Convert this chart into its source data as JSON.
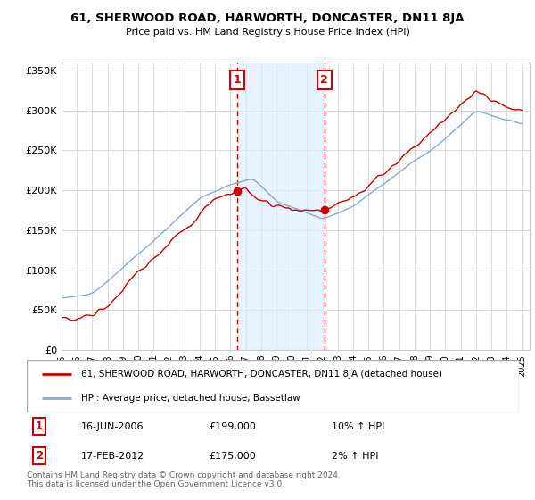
{
  "title": "61, SHERWOOD ROAD, HARWORTH, DONCASTER, DN11 8JA",
  "subtitle": "Price paid vs. HM Land Registry's House Price Index (HPI)",
  "red_label": "61, SHERWOOD ROAD, HARWORTH, DONCASTER, DN11 8JA (detached house)",
  "blue_label": "HPI: Average price, detached house, Bassetlaw",
  "transaction1_date": "16-JUN-2006",
  "transaction1_price": "£199,000",
  "transaction1_hpi": "10% ↑ HPI",
  "transaction2_date": "17-FEB-2012",
  "transaction2_price": "£175,000",
  "transaction2_hpi": "2% ↑ HPI",
  "footer": "Contains HM Land Registry data © Crown copyright and database right 2024.\nThis data is licensed under the Open Government Licence v3.0.",
  "ylim_min": 0,
  "ylim_max": 360000,
  "xmin": 1995,
  "xmax": 2025,
  "shade_x1_start": 2006.46,
  "shade_x1_end": 2012.12,
  "vline1_x": 2006.46,
  "vline2_x": 2012.12,
  "marker1_x": 2006.46,
  "marker1_y": 199000,
  "marker2_x": 2012.12,
  "marker2_y": 175000,
  "background_color": "#ffffff",
  "plot_bg_color": "#ffffff",
  "grid_color": "#cccccc",
  "red_color": "#cc0000",
  "blue_color": "#88aacc",
  "shade_color": "#ddeeff",
  "vline_color": "#cc0000",
  "legend_border_color": "#aaaaaa",
  "yticks": [
    0,
    50000,
    100000,
    150000,
    200000,
    250000,
    300000,
    350000
  ],
  "ytick_labels": [
    "£0",
    "£50K",
    "£100K",
    "£150K",
    "£200K",
    "£250K",
    "£300K",
    "£350K"
  ]
}
